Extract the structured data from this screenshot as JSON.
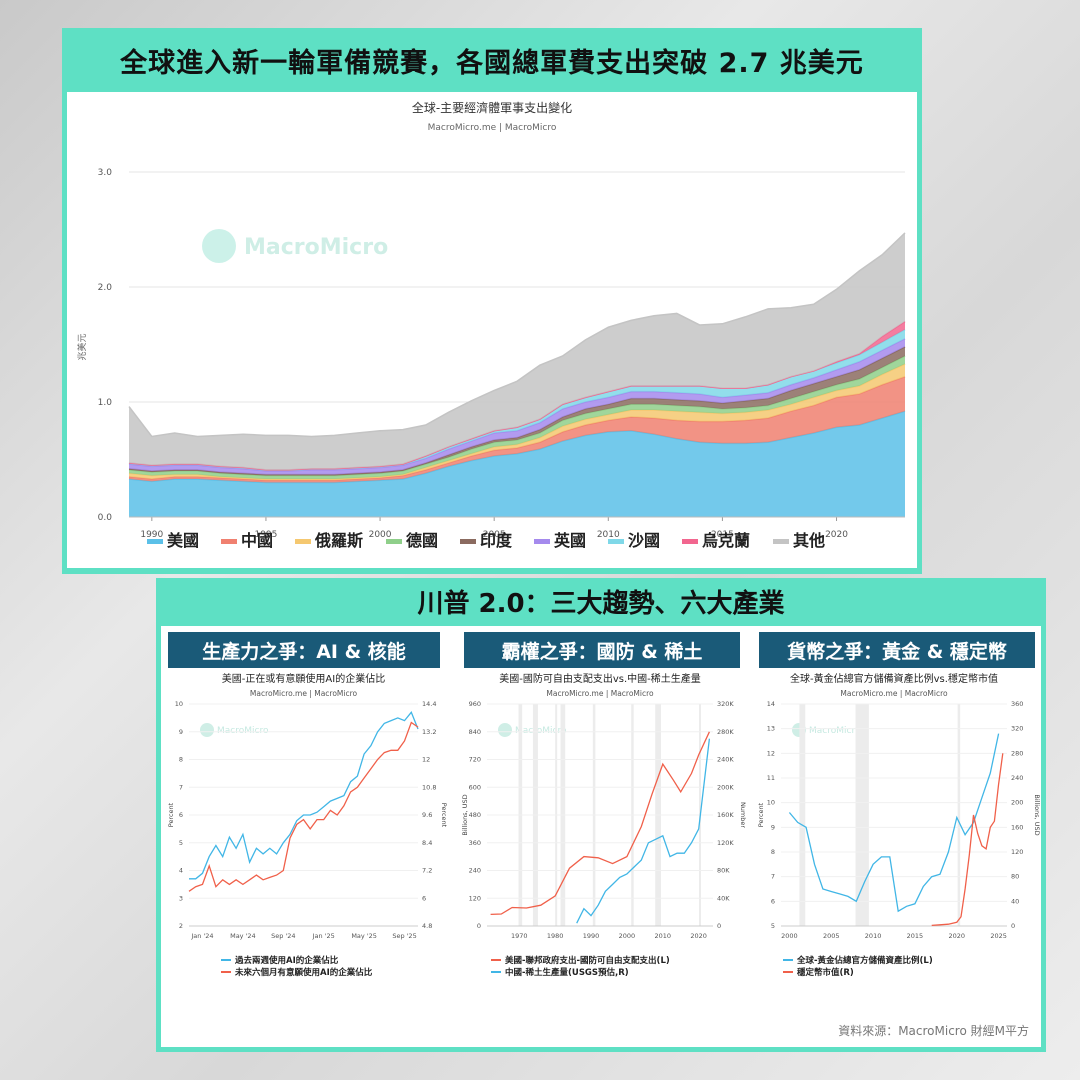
{
  "main": {
    "banner": "全球進入新一輪軍備競賽，各國總軍費支出突破 2.7 兆美元",
    "chart_title": "全球-主要經濟體軍事支出變化",
    "chart_subtitle": "MacroMicro.me | MacroMicro",
    "watermark": "MacroMicro",
    "ylabel": "兆美元"
  },
  "second": {
    "banner": "川普 2.0：三大趨勢、六大產業",
    "panels": [
      {
        "header": "生產力之爭：AI & 核能",
        "title": "美國-正在或有意願使用AI的企業佔比",
        "subtitle": "MacroMicro.me | MacroMicro",
        "left_axis": "Percent",
        "right_axis": "Percent",
        "watermark": "MacroMicro"
      },
      {
        "header": "霸權之爭：國防 & 稀土",
        "title": "美國-國防可自由支配支出vs.中國-稀土生產量",
        "subtitle": "MacroMicro.me | MacroMicro",
        "left_axis": "Billions, USD",
        "right_axis": "Number",
        "watermark": "MacroMicro"
      },
      {
        "header": "貨幣之爭：黃金 & 穩定幣",
        "title": "全球-黃金佔總官方儲備資產比例vs.穩定幣市值",
        "subtitle": "MacroMicro.me | MacroMicro",
        "left_axis": "Percent",
        "right_axis": "Billions, USD",
        "watermark": "MacroMicro"
      }
    ],
    "source": "資料來源：MacroMicro 財經M平方"
  },
  "chart_data": [
    {
      "type": "area",
      "title": "全球-主要經濟體軍事支出變化",
      "ylabel": "兆美元",
      "ylim": [
        0,
        3.0
      ],
      "yticks": [
        "0.0",
        "1.0",
        "2.0",
        "3.0"
      ],
      "xlim": [
        1989,
        2023
      ],
      "xticks": [
        "1990",
        "1995",
        "2000",
        "2005",
        "2010",
        "2015",
        "2020"
      ],
      "stacked": true,
      "x": [
        1989,
        1990,
        1991,
        1992,
        1993,
        1994,
        1995,
        1996,
        1997,
        1998,
        1999,
        2000,
        2001,
        2002,
        2003,
        2004,
        2005,
        2006,
        2007,
        2008,
        2009,
        2010,
        2011,
        2012,
        2013,
        2014,
        2015,
        2016,
        2017,
        2018,
        2019,
        2020,
        2021,
        2022,
        2023
      ],
      "legend_position": "bottom",
      "series": [
        {
          "name": "美國",
          "color": "#5bc0e8",
          "values": [
            0.33,
            0.31,
            0.33,
            0.33,
            0.32,
            0.31,
            0.3,
            0.3,
            0.3,
            0.3,
            0.31,
            0.32,
            0.33,
            0.38,
            0.44,
            0.49,
            0.53,
            0.55,
            0.59,
            0.66,
            0.71,
            0.74,
            0.75,
            0.72,
            0.68,
            0.65,
            0.64,
            0.64,
            0.65,
            0.69,
            0.73,
            0.78,
            0.8,
            0.86,
            0.92
          ]
        },
        {
          "name": "中國",
          "color": "#f08070",
          "values": [
            0.02,
            0.02,
            0.02,
            0.02,
            0.02,
            0.02,
            0.02,
            0.02,
            0.02,
            0.02,
            0.02,
            0.02,
            0.03,
            0.03,
            0.03,
            0.04,
            0.05,
            0.05,
            0.06,
            0.08,
            0.09,
            0.1,
            0.12,
            0.14,
            0.16,
            0.18,
            0.19,
            0.2,
            0.21,
            0.23,
            0.24,
            0.26,
            0.27,
            0.29,
            0.3
          ]
        },
        {
          "name": "俄羅斯",
          "color": "#f5c870",
          "values": [
            0.03,
            0.03,
            0.02,
            0.02,
            0.01,
            0.01,
            0.01,
            0.01,
            0.01,
            0.01,
            0.01,
            0.01,
            0.01,
            0.02,
            0.02,
            0.02,
            0.03,
            0.03,
            0.04,
            0.05,
            0.05,
            0.05,
            0.06,
            0.07,
            0.08,
            0.08,
            0.07,
            0.07,
            0.07,
            0.06,
            0.07,
            0.06,
            0.07,
            0.09,
            0.11
          ]
        },
        {
          "name": "德國",
          "color": "#8fcf8a",
          "values": [
            0.03,
            0.03,
            0.03,
            0.03,
            0.03,
            0.03,
            0.03,
            0.03,
            0.03,
            0.03,
            0.03,
            0.03,
            0.03,
            0.03,
            0.03,
            0.04,
            0.04,
            0.04,
            0.04,
            0.05,
            0.05,
            0.05,
            0.05,
            0.05,
            0.05,
            0.05,
            0.04,
            0.04,
            0.04,
            0.05,
            0.05,
            0.05,
            0.06,
            0.06,
            0.07
          ]
        },
        {
          "name": "印度",
          "color": "#8b6b60",
          "values": [
            0.01,
            0.01,
            0.01,
            0.01,
            0.01,
            0.01,
            0.01,
            0.01,
            0.01,
            0.01,
            0.01,
            0.01,
            0.01,
            0.01,
            0.02,
            0.02,
            0.02,
            0.02,
            0.03,
            0.03,
            0.04,
            0.04,
            0.05,
            0.05,
            0.05,
            0.05,
            0.05,
            0.06,
            0.06,
            0.07,
            0.07,
            0.07,
            0.08,
            0.08,
            0.08
          ]
        },
        {
          "name": "英國",
          "color": "#a58aed",
          "values": [
            0.04,
            0.04,
            0.04,
            0.04,
            0.04,
            0.04,
            0.03,
            0.03,
            0.04,
            0.04,
            0.04,
            0.04,
            0.04,
            0.04,
            0.05,
            0.05,
            0.06,
            0.06,
            0.06,
            0.07,
            0.06,
            0.06,
            0.06,
            0.06,
            0.06,
            0.06,
            0.05,
            0.05,
            0.05,
            0.05,
            0.05,
            0.06,
            0.07,
            0.07,
            0.07
          ]
        },
        {
          "name": "沙國",
          "color": "#7fd8e8",
          "values": [
            0.01,
            0.01,
            0.01,
            0.01,
            0.01,
            0.01,
            0.01,
            0.01,
            0.01,
            0.01,
            0.01,
            0.01,
            0.01,
            0.02,
            0.02,
            0.02,
            0.02,
            0.03,
            0.03,
            0.04,
            0.04,
            0.05,
            0.05,
            0.05,
            0.06,
            0.07,
            0.08,
            0.06,
            0.07,
            0.07,
            0.06,
            0.06,
            0.06,
            0.07,
            0.08
          ]
        },
        {
          "name": "烏克蘭",
          "color": "#f2668f",
          "values": [
            0,
            0,
            0,
            0,
            0,
            0,
            0,
            0,
            0,
            0,
            0,
            0,
            0,
            0,
            0,
            0,
            0,
            0,
            0,
            0,
            0,
            0,
            0,
            0,
            0,
            0,
            0,
            0,
            0,
            0,
            0,
            0.01,
            0.01,
            0.05,
            0.07
          ]
        },
        {
          "name": "其他",
          "color": "#c4c4c4",
          "values": [
            0.49,
            0.25,
            0.27,
            0.24,
            0.27,
            0.29,
            0.3,
            0.3,
            0.28,
            0.29,
            0.3,
            0.31,
            0.3,
            0.27,
            0.3,
            0.33,
            0.35,
            0.4,
            0.47,
            0.42,
            0.5,
            0.56,
            0.57,
            0.61,
            0.63,
            0.53,
            0.56,
            0.62,
            0.66,
            0.6,
            0.58,
            0.63,
            0.72,
            0.71,
            0.77
          ]
        }
      ]
    },
    {
      "type": "line",
      "title": "美國-正在或有意願使用AI的企業佔比",
      "xticks": [
        "Jan '24",
        "May '24",
        "Sep '24",
        "Jan '25",
        "May '25",
        "Sep '25"
      ],
      "ylim_left": [
        2,
        10
      ],
      "yticks_left": [
        "2",
        "3",
        "4",
        "5",
        "6",
        "7",
        "8",
        "9",
        "10"
      ],
      "ylim_right": [
        4.8,
        14.4
      ],
      "yticks_right": [
        "4.8",
        "6",
        "7.2",
        "8.4",
        "9.6",
        "10.8",
        "12",
        "13.2",
        "14.4"
      ],
      "series": [
        {
          "name": "過去兩週使用AI的企業佔比",
          "axis": "left",
          "color": "#41b6e6",
          "values": [
            3.7,
            3.7,
            3.9,
            4.5,
            4.9,
            4.5,
            5.2,
            4.8,
            5.3,
            4.3,
            4.8,
            4.6,
            4.8,
            4.6,
            5.0,
            5.3,
            5.8,
            6.0,
            6.0,
            6.1,
            6.3,
            6.5,
            6.6,
            6.7,
            7.2,
            7.4,
            8.2,
            8.5,
            9.0,
            9.3,
            9.4,
            9.5,
            9.4,
            9.7,
            9.1
          ]
        },
        {
          "name": "未來六個月有意願使用AI的企業佔比",
          "axis": "right",
          "color": "#f0604a",
          "values": [
            6.3,
            6.5,
            6.6,
            7.4,
            6.5,
            6.8,
            6.6,
            6.8,
            6.6,
            6.8,
            7.0,
            6.8,
            6.9,
            7.0,
            7.2,
            8.6,
            9.2,
            9.4,
            9.0,
            9.4,
            9.4,
            9.8,
            9.6,
            10.0,
            10.6,
            10.8,
            11.2,
            11.6,
            12.0,
            12.3,
            12.4,
            12.4,
            12.8,
            13.6,
            13.4
          ]
        }
      ]
    },
    {
      "type": "line",
      "title": "美國-國防可自由支配支出vs.中國-稀土生產量",
      "xticks": [
        "1970",
        "1980",
        "1990",
        "2000",
        "2010",
        "2020"
      ],
      "ylim_left": [
        0,
        960
      ],
      "yticks_left": [
        "0",
        "120",
        "240",
        "360",
        "480",
        "600",
        "720",
        "840",
        "960"
      ],
      "ylim_right": [
        0,
        320000
      ],
      "yticks_right": [
        "0",
        "40K",
        "80K",
        "120K",
        "160K",
        "200K",
        "240K",
        "280K",
        "320K"
      ],
      "series": [
        {
          "name": "美國-聯邦政府支出-國防可自由支配支出(L)",
          "axis": "left",
          "color": "#f0604a",
          "x": [
            1962,
            1965,
            1968,
            1972,
            1976,
            1980,
            1984,
            1988,
            1992,
            1996,
            2000,
            2004,
            2007,
            2010,
            2013,
            2015,
            2018,
            2020,
            2023
          ],
          "values": [
            50,
            52,
            80,
            78,
            90,
            130,
            250,
            300,
            295,
            270,
            300,
            430,
            570,
            700,
            630,
            580,
            660,
            740,
            840
          ]
        },
        {
          "name": "中國-稀土生產量(USGS預估,R)",
          "axis": "right",
          "color": "#41b6e6",
          "x": [
            1986,
            1988,
            1990,
            1992,
            1994,
            1996,
            1998,
            2000,
            2002,
            2004,
            2006,
            2008,
            2010,
            2012,
            2014,
            2016,
            2018,
            2020,
            2023
          ],
          "values": [
            4000,
            25000,
            15000,
            30000,
            50000,
            60000,
            70000,
            75000,
            85000,
            95000,
            120000,
            125000,
            130000,
            100000,
            105000,
            105000,
            120000,
            140000,
            270000
          ]
        }
      ]
    },
    {
      "type": "line",
      "title": "全球-黃金佔總官方儲備資產比例vs.穩定幣市值",
      "xticks": [
        "2000",
        "2005",
        "2010",
        "2015",
        "2020",
        "2025"
      ],
      "ylim_left": [
        5,
        14
      ],
      "yticks_left": [
        "5",
        "6",
        "7",
        "8",
        "9",
        "10",
        "11",
        "12",
        "13",
        "14"
      ],
      "ylim_right": [
        0,
        360
      ],
      "yticks_right": [
        "0",
        "40",
        "80",
        "120",
        "160",
        "200",
        "240",
        "280",
        "320",
        "360"
      ],
      "series": [
        {
          "name": "全球-黃金佔總官方儲備資產比例(L)",
          "axis": "left",
          "color": "#41b6e6",
          "x": [
            2000,
            2001,
            2002,
            2003,
            2004,
            2005,
            2006,
            2007,
            2008,
            2009,
            2010,
            2011,
            2012,
            2013,
            2014,
            2015,
            2016,
            2017,
            2018,
            2019,
            2020,
            2021,
            2022,
            2023,
            2024,
            2025
          ],
          "values": [
            9.6,
            9.2,
            9.0,
            7.5,
            6.5,
            6.4,
            6.3,
            6.2,
            6.0,
            6.8,
            7.5,
            7.8,
            7.8,
            5.6,
            5.8,
            5.9,
            6.6,
            7.0,
            7.1,
            8.0,
            9.4,
            8.7,
            9.2,
            10.2,
            11.2,
            12.8
          ]
        },
        {
          "name": "穩定幣市值(R)",
          "axis": "right",
          "color": "#f0604a",
          "x": [
            2017,
            2018,
            2019,
            2020,
            2020.5,
            2021,
            2021.5,
            2022,
            2022.5,
            2023,
            2023.5,
            2024,
            2024.5,
            2025,
            2025.5
          ],
          "values": [
            1,
            2,
            3,
            6,
            15,
            60,
            115,
            180,
            150,
            130,
            125,
            160,
            170,
            230,
            280
          ]
        }
      ]
    }
  ]
}
